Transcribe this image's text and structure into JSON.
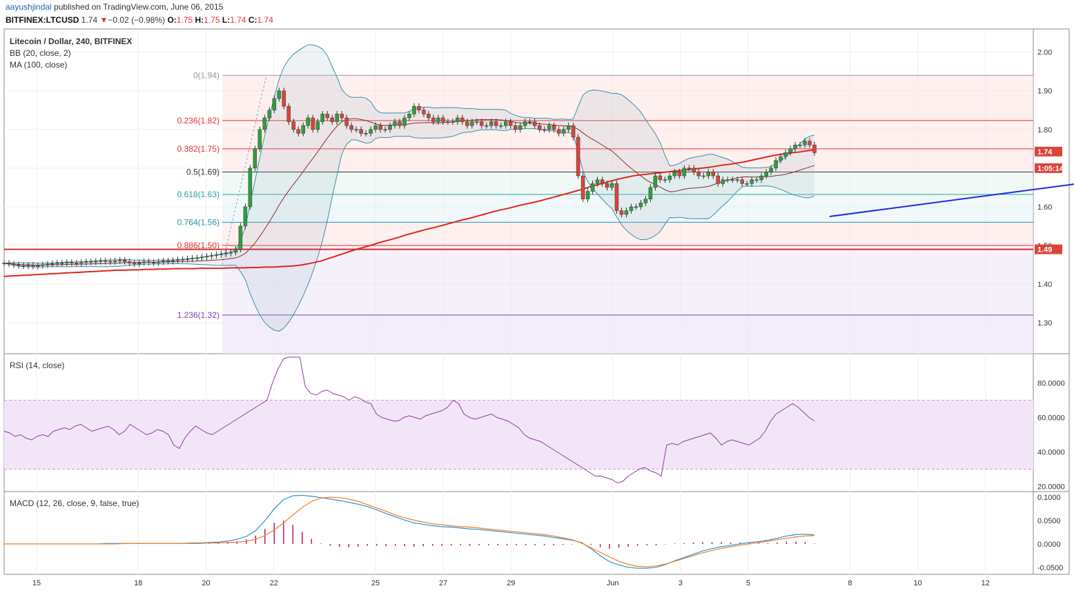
{
  "header": {
    "author": "aayushjindal",
    "published": "published on TradingView.com, June 06, 2015",
    "symbol": "BITFINEX:LTCUSD",
    "last": "1.74",
    "change_arrow": "▼",
    "change": "−0.02 (−0.98%)",
    "o_label": "O:",
    "o_value": "1.75",
    "h_label": "H:",
    "h_value": "1.75",
    "l_label": "L:",
    "l_value": "1.74",
    "c_label": "C:",
    "c_value": "1.74"
  },
  "colors": {
    "up": "#2e9f3e",
    "down": "#d9453b",
    "ma": "#e3241c",
    "bb": "#3b8ea5",
    "trend": "#1c2ae0",
    "rsi": "#8e3a9e",
    "macd": "#2b8fd6",
    "signal": "#f57c1e",
    "hist": "#c2185b",
    "fib0": "#999999",
    "fib236": "#e0322f",
    "fib382": "#e0322f",
    "fib5": "#333333",
    "fib618": "#26a69a",
    "fib764": "#2a8fb0",
    "fib886": "#e0322f",
    "fib1236": "#7b3fb0"
  },
  "chart_data": [
    {
      "type": "candlestick",
      "title": "Litecoin / Dollar, 240, BITFINEX",
      "indicators": [
        "BB (20, close, 2)",
        "MA (100, close)"
      ],
      "x_ticks": [
        "15",
        "18",
        "20",
        "22",
        "25",
        "27",
        "29",
        "Jun",
        "3",
        "5",
        "8",
        "10",
        "12"
      ],
      "y_ticks": [
        "2.00",
        "1.90",
        "1.80",
        "1.70",
        "1.60",
        "1.50",
        "1.40",
        "1.30"
      ],
      "ylim": [
        1.22,
        2.06
      ],
      "last_price_label": "1.74",
      "countdown_label": "1:05:14",
      "support_label": "1.49",
      "support_level": 1.49,
      "fibonacci": [
        {
          "label": "0(1.94)",
          "value": 1.94,
          "color": "fib0"
        },
        {
          "label": "0.236(1.82)",
          "value": 1.823,
          "color": "fib236"
        },
        {
          "label": "0.382(1.75)",
          "value": 1.75,
          "color": "fib382"
        },
        {
          "label": "0.5(1.69)",
          "value": 1.69,
          "color": "fib5"
        },
        {
          "label": "0.618(1.63)",
          "value": 1.632,
          "color": "fib618"
        },
        {
          "label": "0.764(1.56)",
          "value": 1.56,
          "color": "fib764"
        },
        {
          "label": "0.886(1.50)",
          "value": 1.5,
          "color": "fib886"
        },
        {
          "label": "1.236(1.32)",
          "value": 1.32,
          "color": "fib1236"
        }
      ],
      "trendline": {
        "from": {
          "x": 23.4,
          "y": 1.575
        },
        "to": {
          "x": 36.1,
          "y": 1.722
        }
      },
      "close": [
        1.454,
        1.452,
        1.45,
        1.448,
        1.447,
        1.449,
        1.446,
        1.448,
        1.45,
        1.452,
        1.453,
        1.455,
        1.454,
        1.456,
        1.455,
        1.454,
        1.456,
        1.458,
        1.457,
        1.459,
        1.46,
        1.459,
        1.458,
        1.46,
        1.462,
        1.458,
        1.454,
        1.452,
        1.455,
        1.458,
        1.456,
        1.455,
        1.458,
        1.46,
        1.459,
        1.461,
        1.463,
        1.464,
        1.465,
        1.467,
        1.468,
        1.47,
        1.472,
        1.474,
        1.476,
        1.478,
        1.48,
        1.482,
        1.49,
        1.55,
        1.6,
        1.7,
        1.75,
        1.8,
        1.83,
        1.85,
        1.88,
        1.9,
        1.86,
        1.82,
        1.8,
        1.79,
        1.81,
        1.83,
        1.8,
        1.82,
        1.84,
        1.83,
        1.82,
        1.84,
        1.83,
        1.81,
        1.8,
        1.8,
        1.79,
        1.79,
        1.8,
        1.81,
        1.8,
        1.8,
        1.81,
        1.82,
        1.81,
        1.83,
        1.84,
        1.86,
        1.85,
        1.84,
        1.83,
        1.82,
        1.83,
        1.82,
        1.82,
        1.82,
        1.83,
        1.82,
        1.81,
        1.82,
        1.82,
        1.81,
        1.81,
        1.82,
        1.81,
        1.81,
        1.82,
        1.81,
        1.8,
        1.81,
        1.82,
        1.82,
        1.81,
        1.8,
        1.8,
        1.81,
        1.8,
        1.79,
        1.8,
        1.81,
        1.78,
        1.68,
        1.62,
        1.64,
        1.66,
        1.67,
        1.66,
        1.65,
        1.66,
        1.59,
        1.58,
        1.59,
        1.6,
        1.6,
        1.61,
        1.62,
        1.65,
        1.68,
        1.67,
        1.67,
        1.68,
        1.69,
        1.68,
        1.7,
        1.7,
        1.69,
        1.68,
        1.68,
        1.69,
        1.68,
        1.66,
        1.67,
        1.67,
        1.67,
        1.67,
        1.66,
        1.66,
        1.67,
        1.67,
        1.68,
        1.69,
        1.7,
        1.72,
        1.73,
        1.74,
        1.75,
        1.76,
        1.76,
        1.77,
        1.76,
        1.74
      ],
      "ma100": [
        1.42,
        1.421,
        1.422,
        1.423,
        1.424,
        1.425,
        1.426,
        1.427,
        1.428,
        1.429,
        1.43,
        1.431,
        1.432,
        1.433,
        1.434,
        1.435,
        1.436,
        1.436,
        1.437,
        1.437,
        1.438,
        1.438,
        1.439,
        1.439,
        1.44,
        1.44,
        1.44,
        1.44,
        1.441,
        1.441,
        1.441,
        1.441,
        1.442,
        1.442,
        1.442,
        1.443,
        1.443,
        1.444,
        1.444,
        1.445,
        1.446,
        1.447,
        1.449,
        1.452,
        1.456,
        1.46,
        1.466,
        1.472,
        1.478,
        1.484,
        1.49,
        1.495,
        1.5,
        1.506,
        1.511,
        1.516,
        1.521,
        1.527,
        1.532,
        1.537,
        1.542,
        1.546,
        1.551,
        1.556,
        1.561,
        1.566,
        1.57,
        1.575,
        1.58,
        1.585,
        1.59,
        1.594,
        1.598,
        1.603,
        1.607,
        1.611,
        1.615,
        1.62,
        1.625,
        1.63,
        1.635,
        1.64,
        1.645,
        1.651,
        1.656,
        1.661,
        1.666,
        1.671,
        1.675,
        1.679,
        1.682,
        1.684,
        1.686,
        1.688,
        1.69,
        1.692,
        1.694,
        1.696,
        1.698,
        1.7,
        1.702,
        1.705,
        1.708,
        1.71,
        1.713,
        1.716,
        1.72,
        1.724,
        1.728,
        1.732,
        1.735,
        1.738,
        1.74,
        1.742,
        1.745,
        1.747
      ]
    },
    {
      "type": "line",
      "title": "RSI (14, close)",
      "y_ticks": [
        "80.0000",
        "60.0000",
        "40.0000",
        "20.0000"
      ],
      "ylim": [
        17,
        97
      ],
      "bands": [
        30,
        70
      ],
      "values": [
        52,
        51,
        49,
        50,
        48,
        47,
        49,
        50,
        49,
        52,
        53,
        54,
        53,
        55,
        56,
        54,
        52,
        53,
        54,
        55,
        53,
        50,
        52,
        56,
        54,
        52,
        50,
        51,
        53,
        52,
        50,
        44,
        42,
        48,
        52,
        55,
        53,
        51,
        50,
        52,
        54,
        56,
        58,
        60,
        62,
        64,
        66,
        68,
        70,
        80,
        88,
        94,
        95,
        95,
        95,
        78,
        74,
        73,
        75,
        76,
        74,
        73,
        72,
        70,
        72,
        71,
        69,
        68,
        62,
        60,
        59,
        58,
        58,
        60,
        61,
        60,
        59,
        61,
        62,
        63,
        64,
        66,
        70,
        68,
        62,
        60,
        59,
        60,
        61,
        62,
        60,
        59,
        58,
        56,
        54,
        50,
        48,
        47,
        46,
        44,
        42,
        40,
        38,
        36,
        34,
        32,
        30,
        28,
        26,
        26,
        25,
        24,
        22,
        23,
        26,
        28,
        30,
        31,
        29,
        28,
        26,
        44,
        45,
        44,
        46,
        47,
        48,
        49,
        50,
        51,
        48,
        44,
        46,
        47,
        46,
        45,
        44,
        46,
        48,
        52,
        58,
        62,
        64,
        66,
        68,
        66,
        63,
        60,
        58
      ]
    },
    {
      "type": "line",
      "title": "MACD (12, 26, close, 9, false, true)",
      "y_ticks": [
        "0.1000",
        "0.0500",
        "0.0000",
        "-0.0500"
      ],
      "ylim": [
        -0.065,
        0.112
      ],
      "macd": [
        0.0,
        0.0,
        0.0,
        0.0,
        0.0,
        0.0,
        0.0,
        0.0,
        0.0,
        0.0,
        0.0,
        0.001,
        0.001,
        0.001,
        0.001,
        0.001,
        0.001,
        0.001,
        0.001,
        0.001,
        0.002,
        0.002,
        0.003,
        0.004,
        0.006,
        0.01,
        0.016,
        0.028,
        0.05,
        0.075,
        0.095,
        0.103,
        0.104,
        0.102,
        0.099,
        0.096,
        0.093,
        0.089,
        0.085,
        0.08,
        0.073,
        0.065,
        0.058,
        0.051,
        0.045,
        0.042,
        0.039,
        0.037,
        0.036,
        0.034,
        0.032,
        0.031,
        0.029,
        0.027,
        0.025,
        0.023,
        0.021,
        0.019,
        0.017,
        0.014,
        0.011,
        0.008,
        0.003,
        -0.01,
        -0.025,
        -0.038,
        -0.045,
        -0.05,
        -0.052,
        -0.052,
        -0.05,
        -0.044,
        -0.036,
        -0.029,
        -0.022,
        -0.015,
        -0.01,
        -0.006,
        -0.003,
        -0.0,
        0.003,
        0.005,
        0.008,
        0.012,
        0.017,
        0.02,
        0.021,
        0.019
      ],
      "signal": [
        0.0,
        0.0,
        0.0,
        0.0,
        0.0,
        0.0,
        0.0,
        0.0,
        0.0,
        0.0,
        0.0,
        0.0,
        0.0,
        0.001,
        0.001,
        0.001,
        0.001,
        0.001,
        0.001,
        0.001,
        0.001,
        0.001,
        0.002,
        0.002,
        0.003,
        0.004,
        0.006,
        0.01,
        0.018,
        0.03,
        0.045,
        0.062,
        0.078,
        0.091,
        0.098,
        0.1,
        0.099,
        0.096,
        0.091,
        0.084,
        0.077,
        0.07,
        0.062,
        0.056,
        0.051,
        0.047,
        0.043,
        0.041,
        0.039,
        0.037,
        0.036,
        0.034,
        0.032,
        0.03,
        0.028,
        0.026,
        0.024,
        0.022,
        0.02,
        0.017,
        0.013,
        0.009,
        0.002,
        -0.008,
        -0.018,
        -0.028,
        -0.037,
        -0.044,
        -0.048,
        -0.049,
        -0.047,
        -0.043,
        -0.037,
        -0.031,
        -0.025,
        -0.019,
        -0.014,
        -0.01,
        -0.006,
        -0.003,
        0.0,
        0.003,
        0.006,
        0.009,
        0.012,
        0.015,
        0.017,
        0.018
      ]
    }
  ]
}
